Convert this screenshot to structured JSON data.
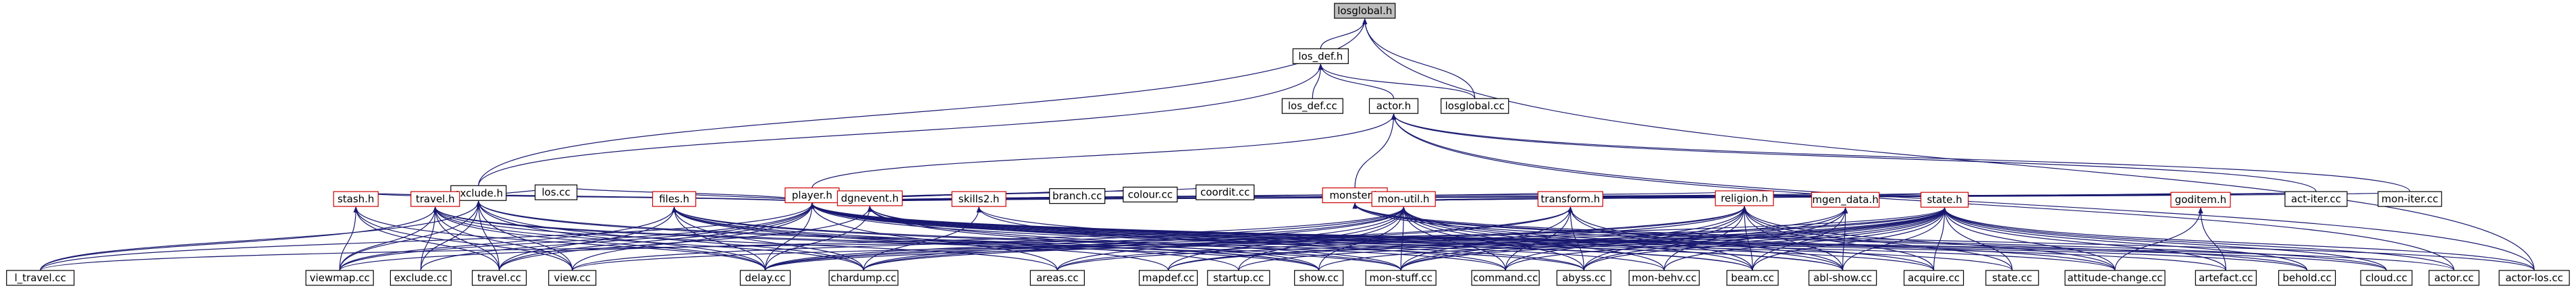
{
  "nodes": [
    {
      "id": "losglobal_h",
      "label": "losglobal.h",
      "style": "focus"
    },
    {
      "id": "los_def_h",
      "label": "los_def.h",
      "style": "normal"
    },
    {
      "id": "los_def_cc",
      "label": "los_def.cc",
      "style": "normal"
    },
    {
      "id": "actor_h",
      "label": "actor.h",
      "style": "normal"
    },
    {
      "id": "losglobal_cc",
      "label": "losglobal.cc",
      "style": "normal"
    },
    {
      "id": "exclude_h",
      "label": "exclude.h",
      "style": "normal"
    },
    {
      "id": "player_h",
      "label": "player.h",
      "style": "red"
    },
    {
      "id": "monster_h",
      "label": "monster.h",
      "style": "red"
    },
    {
      "id": "los_cc",
      "label": "los.cc",
      "style": "normal"
    },
    {
      "id": "stash_h",
      "label": "stash.h",
      "style": "red"
    },
    {
      "id": "travel_h",
      "label": "travel.h",
      "style": "red"
    },
    {
      "id": "files_h",
      "label": "files.h",
      "style": "red"
    },
    {
      "id": "dgnevent_h",
      "label": "dgnevent.h",
      "style": "red"
    },
    {
      "id": "skills2_h",
      "label": "skills2.h",
      "style": "red"
    },
    {
      "id": "branch_cc",
      "label": "branch.cc",
      "style": "normal"
    },
    {
      "id": "colour_cc",
      "label": "colour.cc",
      "style": "normal"
    },
    {
      "id": "coordit_cc",
      "label": "coordit.cc",
      "style": "normal"
    },
    {
      "id": "mon_util_h",
      "label": "mon-util.h",
      "style": "red"
    },
    {
      "id": "transform_h",
      "label": "transform.h",
      "style": "red"
    },
    {
      "id": "religion_h",
      "label": "religion.h",
      "style": "red"
    },
    {
      "id": "mgen_data_h",
      "label": "mgen_data.h",
      "style": "red"
    },
    {
      "id": "state_h",
      "label": "state.h",
      "style": "red"
    },
    {
      "id": "goditem_h",
      "label": "goditem.h",
      "style": "red"
    },
    {
      "id": "act_iter_cc",
      "label": "act-iter.cc",
      "style": "normal"
    },
    {
      "id": "mon_iter_cc",
      "label": "mon-iter.cc",
      "style": "normal"
    },
    {
      "id": "l_travel_cc",
      "label": "l_travel.cc",
      "style": "normal"
    },
    {
      "id": "viewmap_cc",
      "label": "viewmap.cc",
      "style": "normal"
    },
    {
      "id": "exclude_cc",
      "label": "exclude.cc",
      "style": "normal"
    },
    {
      "id": "travel_cc",
      "label": "travel.cc",
      "style": "normal"
    },
    {
      "id": "view_cc",
      "label": "view.cc",
      "style": "normal"
    },
    {
      "id": "delay_cc",
      "label": "delay.cc",
      "style": "normal"
    },
    {
      "id": "chardump_cc",
      "label": "chardump.cc",
      "style": "normal"
    },
    {
      "id": "areas_cc",
      "label": "areas.cc",
      "style": "normal"
    },
    {
      "id": "mapdef_cc",
      "label": "mapdef.cc",
      "style": "normal"
    },
    {
      "id": "startup_cc",
      "label": "startup.cc",
      "style": "normal"
    },
    {
      "id": "show_cc",
      "label": "show.cc",
      "style": "normal"
    },
    {
      "id": "mon_stuff_cc",
      "label": "mon-stuff.cc",
      "style": "normal"
    },
    {
      "id": "command_cc",
      "label": "command.cc",
      "style": "normal"
    },
    {
      "id": "abyss_cc",
      "label": "abyss.cc",
      "style": "normal"
    },
    {
      "id": "mon_behv_cc",
      "label": "mon-behv.cc",
      "style": "normal"
    },
    {
      "id": "beam_cc",
      "label": "beam.cc",
      "style": "normal"
    },
    {
      "id": "abl_show_cc",
      "label": "abl-show.cc",
      "style": "normal"
    },
    {
      "id": "acquire_cc",
      "label": "acquire.cc",
      "style": "normal"
    },
    {
      "id": "state_cc",
      "label": "state.cc",
      "style": "normal"
    },
    {
      "id": "attitude_change_cc",
      "label": "attitude-change.cc",
      "style": "normal"
    },
    {
      "id": "artefact_cc",
      "label": "artefact.cc",
      "style": "normal"
    },
    {
      "id": "behold_cc",
      "label": "behold.cc",
      "style": "normal"
    },
    {
      "id": "cloud_cc",
      "label": "cloud.cc",
      "style": "normal"
    },
    {
      "id": "actor_cc",
      "label": "actor.cc",
      "style": "normal"
    },
    {
      "id": "actor_los_cc",
      "label": "actor-los.cc",
      "style": "normal"
    }
  ],
  "edges": [
    [
      "los_def_h",
      "losglobal_h"
    ],
    [
      "losglobal_cc",
      "losglobal_h"
    ],
    [
      "exclude_h",
      "losglobal_h"
    ],
    [
      "actor_los_cc",
      "losglobal_h"
    ],
    [
      "los_def_cc",
      "los_def_h"
    ],
    [
      "actor_h",
      "los_def_h"
    ],
    [
      "losglobal_cc",
      "los_def_h"
    ],
    [
      "exclude_h",
      "los_def_h"
    ],
    [
      "player_h",
      "actor_h"
    ],
    [
      "monster_h",
      "actor_h"
    ],
    [
      "act_iter_cc",
      "actor_h"
    ],
    [
      "mon_iter_cc",
      "actor_h"
    ],
    [
      "actor_cc",
      "actor_h"
    ],
    [
      "actor_los_cc",
      "actor_h"
    ],
    [
      "stash_h",
      "exclude_h"
    ],
    [
      "travel_h",
      "exclude_h"
    ],
    [
      "l_travel_cc",
      "exclude_h"
    ],
    [
      "viewmap_cc",
      "exclude_h"
    ],
    [
      "exclude_cc",
      "exclude_h"
    ],
    [
      "travel_cc",
      "exclude_h"
    ],
    [
      "view_cc",
      "exclude_h"
    ],
    [
      "delay_cc",
      "exclude_h"
    ],
    [
      "chardump_cc",
      "exclude_h"
    ],
    [
      "show_cc",
      "exclude_h"
    ],
    [
      "mon_stuff_cc",
      "exclude_h"
    ],
    [
      "los_cc",
      "exclude_h"
    ],
    [
      "los_cc",
      "player_h"
    ],
    [
      "files_h",
      "player_h"
    ],
    [
      "dgnevent_h",
      "player_h"
    ],
    [
      "skills2_h",
      "player_h"
    ],
    [
      "branch_cc",
      "player_h"
    ],
    [
      "colour_cc",
      "player_h"
    ],
    [
      "coordit_cc",
      "player_h"
    ],
    [
      "mon_util_h",
      "player_h"
    ],
    [
      "transform_h",
      "player_h"
    ],
    [
      "religion_h",
      "player_h"
    ],
    [
      "mgen_data_h",
      "player_h"
    ],
    [
      "state_h",
      "player_h"
    ],
    [
      "goditem_h",
      "player_h"
    ],
    [
      "act_iter_cc",
      "player_h"
    ],
    [
      "travel_h",
      "player_h"
    ],
    [
      "stash_h",
      "player_h"
    ],
    [
      "delay_cc",
      "player_h"
    ],
    [
      "view_cc",
      "player_h"
    ],
    [
      "viewmap_cc",
      "player_h"
    ],
    [
      "l_travel_cc",
      "player_h"
    ],
    [
      "travel_cc",
      "player_h"
    ],
    [
      "exclude_cc",
      "player_h"
    ],
    [
      "areas_cc",
      "player_h"
    ],
    [
      "beam_cc",
      "player_h"
    ],
    [
      "abyss_cc",
      "player_h"
    ],
    [
      "actor_cc",
      "player_h"
    ],
    [
      "cloud_cc",
      "player_h"
    ],
    [
      "behold_cc",
      "player_h"
    ],
    [
      "attitude_change_cc",
      "player_h"
    ],
    [
      "abl_show_cc",
      "player_h"
    ],
    [
      "acquire_cc",
      "player_h"
    ],
    [
      "state_cc",
      "player_h"
    ],
    [
      "artefact_cc",
      "player_h"
    ],
    [
      "goditem_h",
      "monster_h"
    ],
    [
      "act_iter_cc",
      "monster_h"
    ],
    [
      "mon_iter_cc",
      "monster_h"
    ],
    [
      "mon_util_h",
      "monster_h"
    ],
    [
      "state_h",
      "monster_h"
    ],
    [
      "cloud_cc",
      "monster_h"
    ],
    [
      "behold_cc",
      "monster_h"
    ],
    [
      "actor_los_cc",
      "monster_h"
    ],
    [
      "attitude_change_cc",
      "monster_h"
    ],
    [
      "viewmap_cc",
      "stash_h"
    ],
    [
      "travel_cc",
      "stash_h"
    ],
    [
      "view_cc",
      "stash_h"
    ],
    [
      "delay_cc",
      "stash_h"
    ],
    [
      "l_travel_cc",
      "travel_h"
    ],
    [
      "viewmap_cc",
      "travel_h"
    ],
    [
      "exclude_cc",
      "travel_h"
    ],
    [
      "travel_cc",
      "travel_h"
    ],
    [
      "view_cc",
      "travel_h"
    ],
    [
      "delay_cc",
      "travel_h"
    ],
    [
      "chardump_cc",
      "travel_h"
    ],
    [
      "areas_cc",
      "travel_h"
    ],
    [
      "show_cc",
      "travel_h"
    ],
    [
      "mon_stuff_cc",
      "travel_h"
    ],
    [
      "viewmap_cc",
      "files_h"
    ],
    [
      "travel_cc",
      "files_h"
    ],
    [
      "delay_cc",
      "files_h"
    ],
    [
      "chardump_cc",
      "files_h"
    ],
    [
      "startup_cc",
      "files_h"
    ],
    [
      "mapdef_cc",
      "files_h"
    ],
    [
      "show_cc",
      "files_h"
    ],
    [
      "command_cc",
      "files_h"
    ],
    [
      "abyss_cc",
      "files_h"
    ],
    [
      "travel_cc",
      "dgnevent_h"
    ],
    [
      "delay_cc",
      "dgnevent_h"
    ],
    [
      "show_cc",
      "dgnevent_h"
    ],
    [
      "mon_stuff_cc",
      "dgnevent_h"
    ],
    [
      "beam_cc",
      "dgnevent_h"
    ],
    [
      "mon_behv_cc",
      "dgnevent_h"
    ],
    [
      "chardump_cc",
      "skills2_h"
    ],
    [
      "command_cc",
      "skills2_h"
    ],
    [
      "abl_show_cc",
      "skills2_h"
    ],
    [
      "viewmap_cc",
      "mon_util_h"
    ],
    [
      "view_cc",
      "mon_util_h"
    ],
    [
      "delay_cc",
      "mon_util_h"
    ],
    [
      "chardump_cc",
      "mon_util_h"
    ],
    [
      "areas_cc",
      "mon_util_h"
    ],
    [
      "mapdef_cc",
      "mon_util_h"
    ],
    [
      "startup_cc",
      "mon_util_h"
    ],
    [
      "show_cc",
      "mon_util_h"
    ],
    [
      "mon_stuff_cc",
      "mon_util_h"
    ],
    [
      "command_cc",
      "mon_util_h"
    ],
    [
      "abyss_cc",
      "mon_util_h"
    ],
    [
      "mon_behv_cc",
      "mon_util_h"
    ],
    [
      "beam_cc",
      "mon_util_h"
    ],
    [
      "abl_show_cc",
      "mon_util_h"
    ],
    [
      "acquire_cc",
      "mon_util_h"
    ],
    [
      "delay_cc",
      "transform_h"
    ],
    [
      "chardump_cc",
      "transform_h"
    ],
    [
      "mon_stuff_cc",
      "transform_h"
    ],
    [
      "command_cc",
      "transform_h"
    ],
    [
      "abyss_cc",
      "transform_h"
    ],
    [
      "beam_cc",
      "transform_h"
    ],
    [
      "abl_show_cc",
      "transform_h"
    ],
    [
      "delay_cc",
      "religion_h"
    ],
    [
      "chardump_cc",
      "religion_h"
    ],
    [
      "areas_cc",
      "religion_h"
    ],
    [
      "mon_stuff_cc",
      "religion_h"
    ],
    [
      "command_cc",
      "religion_h"
    ],
    [
      "abyss_cc",
      "religion_h"
    ],
    [
      "mon_behv_cc",
      "religion_h"
    ],
    [
      "beam_cc",
      "religion_h"
    ],
    [
      "abl_show_cc",
      "religion_h"
    ],
    [
      "acquire_cc",
      "religion_h"
    ],
    [
      "state_cc",
      "religion_h"
    ],
    [
      "attitude_change_cc",
      "religion_h"
    ],
    [
      "abyss_cc",
      "mgen_data_h"
    ],
    [
      "mon_stuff_cc",
      "mgen_data_h"
    ],
    [
      "beam_cc",
      "mgen_data_h"
    ],
    [
      "abl_show_cc",
      "mgen_data_h"
    ],
    [
      "mapdef_cc",
      "mgen_data_h"
    ],
    [
      "l_travel_cc",
      "state_h"
    ],
    [
      "view_cc",
      "state_h"
    ],
    [
      "delay_cc",
      "state_h"
    ],
    [
      "areas_cc",
      "state_h"
    ],
    [
      "mapdef_cc",
      "state_h"
    ],
    [
      "startup_cc",
      "state_h"
    ],
    [
      "show_cc",
      "state_h"
    ],
    [
      "mon_stuff_cc",
      "state_h"
    ],
    [
      "command_cc",
      "state_h"
    ],
    [
      "abyss_cc",
      "state_h"
    ],
    [
      "mon_behv_cc",
      "state_h"
    ],
    [
      "beam_cc",
      "state_h"
    ],
    [
      "abl_show_cc",
      "state_h"
    ],
    [
      "acquire_cc",
      "state_h"
    ],
    [
      "state_cc",
      "state_h"
    ],
    [
      "attitude_change_cc",
      "state_h"
    ],
    [
      "artefact_cc",
      "state_h"
    ],
    [
      "behold_cc",
      "state_h"
    ],
    [
      "cloud_cc",
      "state_h"
    ],
    [
      "actor_cc",
      "state_h"
    ],
    [
      "actor_los_cc",
      "state_h"
    ],
    [
      "attitude_change_cc",
      "goditem_h"
    ],
    [
      "artefact_cc",
      "goditem_h"
    ]
  ]
}
